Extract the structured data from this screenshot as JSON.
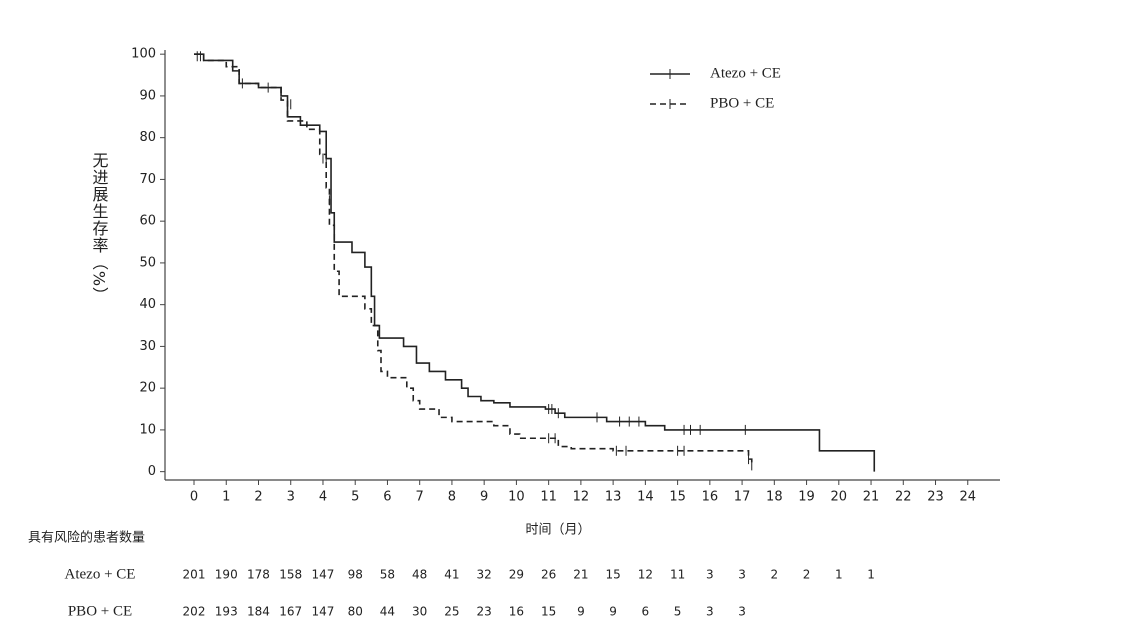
{
  "chart_data": {
    "type": "line",
    "x_label": "时间（月）",
    "y_label": "无进展生存率（%）",
    "xlim": [
      -0.9,
      25
    ],
    "ylim": [
      -2,
      101
    ],
    "xticks": [
      0,
      1,
      2,
      3,
      4,
      5,
      6,
      7,
      8,
      9,
      10,
      11,
      12,
      13,
      14,
      15,
      16,
      17,
      18,
      19,
      20,
      21,
      22,
      23,
      24
    ],
    "yticks": [
      0,
      10,
      20,
      30,
      40,
      50,
      60,
      70,
      80,
      90,
      100
    ],
    "legend": "upper right",
    "series": [
      {
        "name": "Atezo + CE",
        "color": "#222222",
        "dash": "solid",
        "x": [
          0,
          0.3,
          0.3,
          1.2,
          1.2,
          1.4,
          1.4,
          2,
          2,
          2.7,
          2.7,
          2.9,
          2.9,
          3.3,
          3.3,
          3.9,
          3.9,
          4.1,
          4.1,
          4.25,
          4.25,
          4.35,
          4.35,
          4.9,
          4.9,
          5.3,
          5.3,
          5.5,
          5.5,
          5.6,
          5.6,
          5.75,
          5.75,
          6.5,
          6.5,
          6.9,
          6.9,
          7.3,
          7.3,
          7.8,
          7.8,
          8.3,
          8.3,
          8.5,
          8.5,
          8.9,
          8.9,
          9.3,
          9.3,
          9.8,
          9.8,
          10.9,
          10.9,
          11.2,
          11.2,
          11.5,
          11.5,
          12.8,
          12.8,
          14,
          14,
          14.6,
          14.6,
          19.4,
          19.4,
          21.1,
          21.1
        ],
        "values": [
          100,
          100,
          98.5,
          98.5,
          96,
          96,
          93,
          93,
          92,
          92,
          90,
          90,
          85,
          85,
          83,
          83,
          81.5,
          81.5,
          75,
          75,
          62,
          62,
          55,
          55,
          52.5,
          52.5,
          49,
          49,
          42,
          42,
          35,
          35,
          32,
          32,
          30,
          30,
          26,
          26,
          24,
          24,
          22,
          22,
          20,
          20,
          18,
          18,
          17,
          17,
          16.5,
          16.5,
          15.5,
          15.5,
          15,
          15,
          14,
          14,
          13,
          13,
          12,
          12,
          11,
          11,
          10,
          10,
          5,
          5,
          0
        ],
        "censor": {
          "x": [
            0.1,
            1.5,
            2.3,
            3.0,
            4.1,
            11.0,
            11.1,
            11.3,
            12.5,
            13.2,
            13.5,
            13.8,
            15.2,
            15.4,
            15.7,
            17.1
          ],
          "values": [
            99.5,
            93,
            92,
            88,
            75,
            15,
            15,
            14,
            13,
            12,
            12,
            12,
            10,
            10,
            10,
            10
          ]
        }
      },
      {
        "name": "PBO + CE",
        "color": "#222222",
        "dash": "dashed",
        "x": [
          0,
          0.3,
          0.3,
          1,
          1,
          1.4,
          1.4,
          2,
          2,
          2.7,
          2.7,
          2.9,
          2.9,
          3.5,
          3.5,
          3.9,
          3.9,
          4.1,
          4.1,
          4.2,
          4.2,
          4.35,
          4.35,
          4.5,
          4.5,
          5.3,
          5.3,
          5.5,
          5.5,
          5.7,
          5.7,
          5.8,
          5.8,
          6,
          6,
          6.6,
          6.6,
          6.8,
          6.8,
          7,
          7,
          7.6,
          7.6,
          8,
          8,
          9.3,
          9.3,
          9.8,
          9.8,
          10.1,
          10.1,
          11.3,
          11.3,
          11.7,
          11.7,
          13,
          13,
          17.2,
          17.2,
          17.3,
          17.3
        ],
        "values": [
          100,
          100,
          98.5,
          98.5,
          97,
          97,
          93,
          93,
          92,
          92,
          89,
          89,
          84,
          84,
          82,
          82,
          76,
          76,
          68,
          68,
          59,
          59,
          48,
          48,
          42,
          42,
          39,
          39,
          35,
          35,
          29,
          29,
          24,
          24,
          22.5,
          22.5,
          20,
          20,
          17,
          17,
          15,
          15,
          13,
          13,
          12,
          12,
          11,
          11,
          9,
          9,
          8,
          8,
          6,
          6,
          5.5,
          5.5,
          5,
          5,
          3,
          3,
          1.5
        ],
        "censor": {
          "x": [
            0.2,
            4.0,
            4.2,
            11.0,
            11.2,
            13.1,
            13.4,
            15.0,
            15.2,
            17.2,
            17.3
          ],
          "values": [
            99.5,
            75,
            65,
            8,
            8,
            5,
            5,
            5,
            5,
            3,
            1.5
          ]
        }
      }
    ],
    "risk_table": {
      "title": "具有风险的患者数量",
      "rows": [
        {
          "name": "Atezo + CE",
          "values": [
            201,
            190,
            178,
            158,
            147,
            98,
            58,
            48,
            41,
            32,
            29,
            26,
            21,
            15,
            12,
            11,
            3,
            3,
            2,
            2,
            1,
            1
          ]
        },
        {
          "name": "PBO + CE",
          "values": [
            202,
            193,
            184,
            167,
            147,
            80,
            44,
            30,
            25,
            23,
            16,
            15,
            9,
            9,
            6,
            5,
            3,
            3
          ]
        }
      ]
    }
  }
}
